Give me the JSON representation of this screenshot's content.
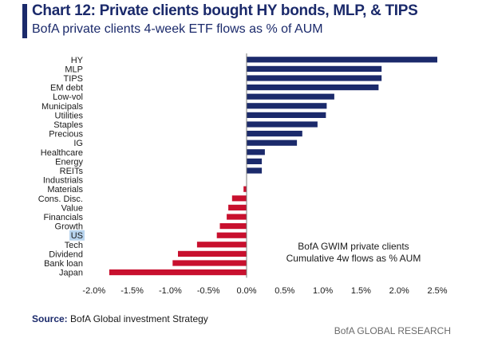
{
  "header": {
    "title": "Chart 12: Private clients bought HY bonds, MLP, & TIPS",
    "subtitle": "BofA private clients 4-week ETF flows as % of AUM"
  },
  "footer": {
    "source_label": "Source:",
    "source_text": "BofA Global investment Strategy",
    "branding": "BofA GLOBAL RESEARCH"
  },
  "colors": {
    "positive": "#1b2a6b",
    "negative": "#c8102e",
    "highlight": "#b8d4ee",
    "accent": "#1b2a6b"
  },
  "chart_data": {
    "type": "bar",
    "orientation": "horizontal",
    "categories": [
      "HY",
      "MLP",
      "TIPS",
      "EM debt",
      "Low-vol",
      "Municipals",
      "Utilities",
      "Staples",
      "Precious",
      "IG",
      "Healthcare",
      "Energy",
      "REITs",
      "Industrials",
      "Materials",
      "Cons. Disc.",
      "Value",
      "Financials",
      "Growth",
      "US",
      "Tech",
      "Dividend",
      "Bank loan",
      "Japan"
    ],
    "values": [
      2.5,
      1.77,
      1.77,
      1.73,
      1.15,
      1.05,
      1.04,
      0.93,
      0.73,
      0.66,
      0.24,
      0.2,
      0.2,
      0.0,
      -0.04,
      -0.19,
      -0.24,
      -0.26,
      -0.35,
      -0.39,
      -0.65,
      -0.9,
      -0.97,
      -1.8
    ],
    "highlighted_category": "US",
    "xlim": [
      -2.0,
      2.5
    ],
    "xticks": [
      -2.0,
      -1.5,
      -1.0,
      -0.5,
      0.0,
      0.5,
      1.0,
      1.5,
      2.0,
      2.5
    ],
    "xtick_labels": [
      "-2.0%",
      "-1.5%",
      "-1.0%",
      "-0.5%",
      "0.0%",
      "0.5%",
      "1.0%",
      "1.5%",
      "2.0%",
      "2.5%"
    ],
    "annotation": [
      "BofA GWIM private clients",
      "Cumulative 4w flows as % AUM"
    ],
    "legend": "none",
    "grid": false
  }
}
